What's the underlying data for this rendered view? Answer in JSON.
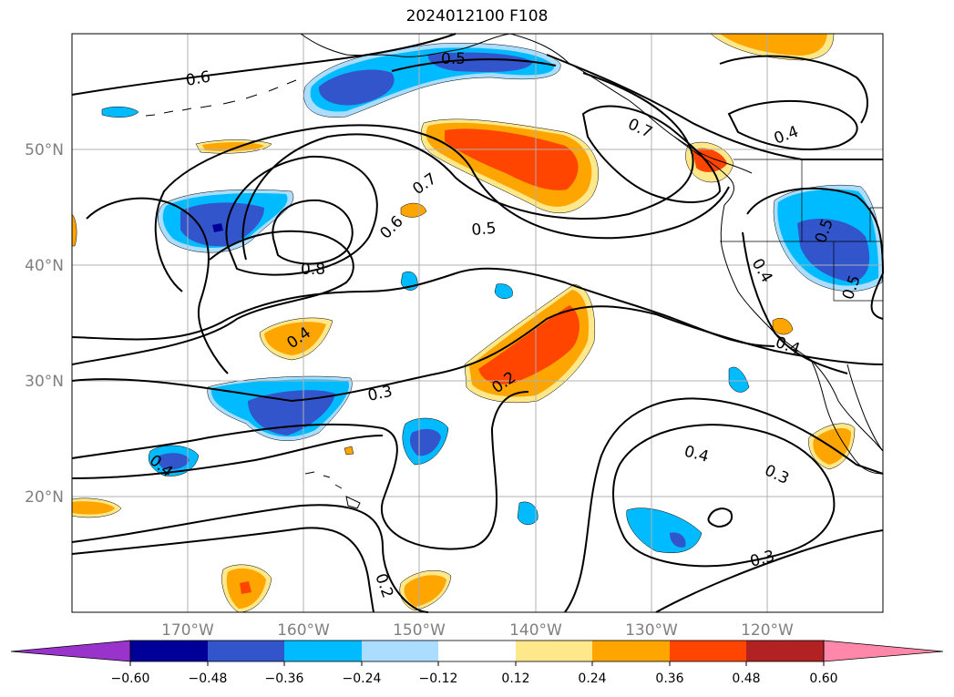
{
  "title": "2024012100 F108",
  "map": {
    "lon_range": [
      -180,
      -110
    ],
    "lat_range": [
      10,
      60
    ],
    "lon_ticks": [
      "170°W",
      "160°W",
      "150°W",
      "140°W",
      "130°W",
      "120°W"
    ],
    "lat_ticks": [
      "20°N",
      "30°N",
      "40°N",
      "50°N"
    ],
    "gridlines": true
  },
  "contour_labels": [
    "0.6",
    "0.5",
    "0.7",
    "0.4",
    "0.7",
    "0.6",
    "0.5",
    "0.8",
    "0.5",
    "0.4",
    "0.5",
    "0.4",
    "0.4",
    "0.4",
    "0.3",
    "0.2",
    "0.3",
    "0.4",
    "0.3",
    "0.2",
    "0.2"
  ],
  "colorbar": {
    "ticks": [
      "−0.60",
      "−0.48",
      "−0.36",
      "−0.24",
      "−0.12",
      "0.12",
      "0.24",
      "0.36",
      "0.48",
      "0.60"
    ],
    "colors": [
      "#9933cc",
      "#000099",
      "#3355cc",
      "#00bbff",
      "#aaddff",
      "#ffffff",
      "#ffe88a",
      "#ffa500",
      "#ff4500",
      "#b22222",
      "#ff88aa"
    ]
  },
  "shading_colors": {
    "neg_light": "#aaddff",
    "neg_mid": "#00bbff",
    "neg_strong": "#3355cc",
    "neg_max": "#000099",
    "pos_light": "#ffe88a",
    "pos_mid": "#ffa500",
    "pos_strong": "#ff4500"
  }
}
